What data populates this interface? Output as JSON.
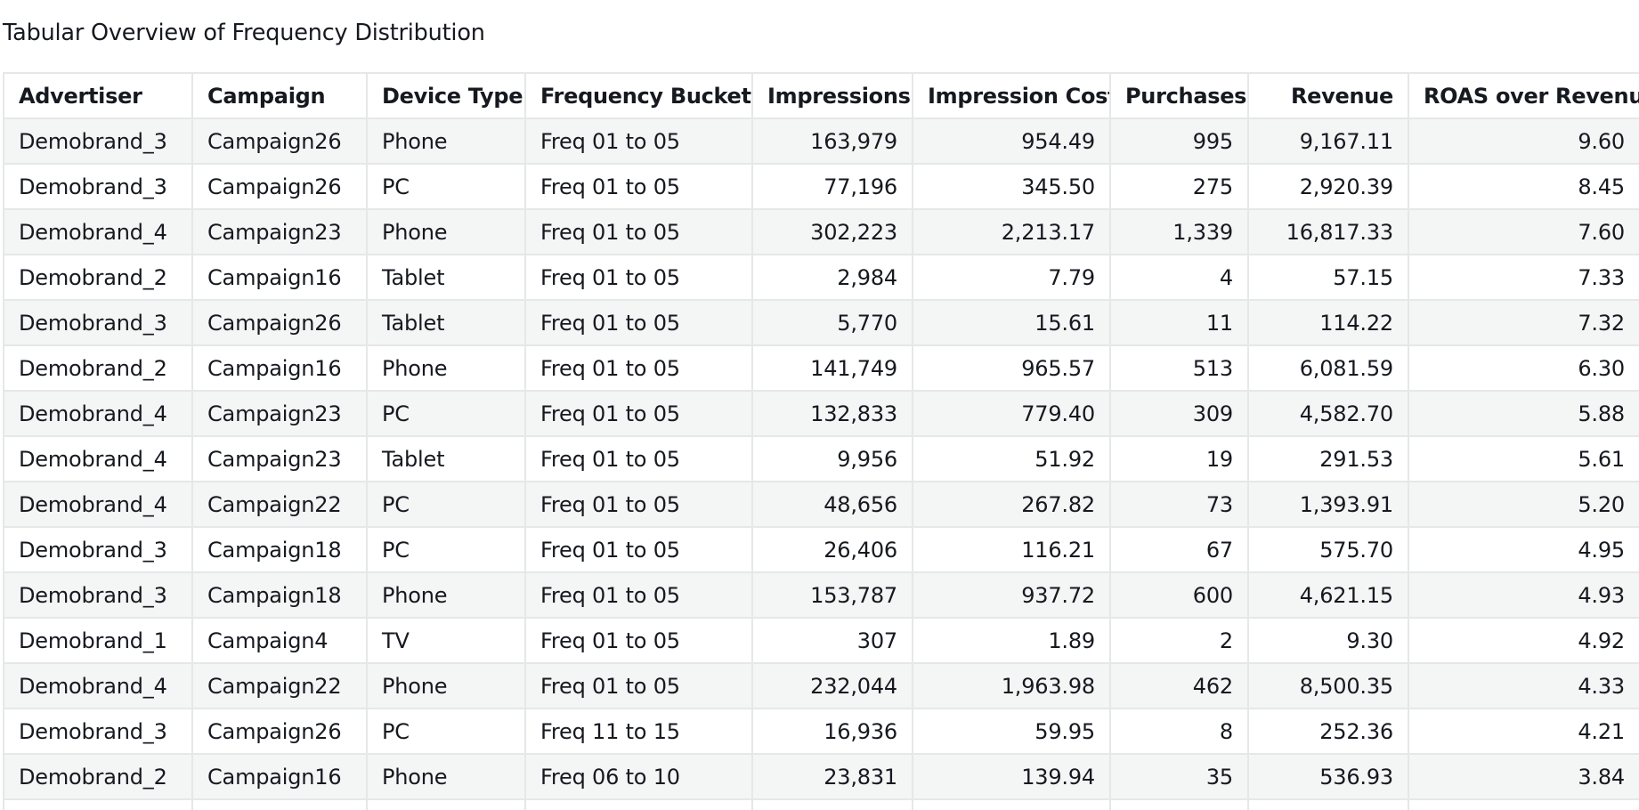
{
  "chart_data": {
    "type": "table",
    "title": "Tabular Overview of Frequency Distribution",
    "columns": [
      {
        "label": "Advertiser",
        "align": "left"
      },
      {
        "label": "Campaign",
        "align": "left"
      },
      {
        "label": "Device Type",
        "align": "left"
      },
      {
        "label": "Frequency Buckets",
        "align": "left"
      },
      {
        "label": "Impressions",
        "align": "right"
      },
      {
        "label": "Impression Cost",
        "align": "right"
      },
      {
        "label": "Purchases",
        "align": "right"
      },
      {
        "label": "Revenue",
        "align": "right"
      },
      {
        "label": "ROAS over Revenue",
        "align": "right"
      }
    ],
    "rows": [
      [
        "Demobrand_3",
        "Campaign26",
        "Phone",
        "Freq 01 to 05",
        "163,979",
        "954.49",
        "995",
        "9,167.11",
        "9.60"
      ],
      [
        "Demobrand_3",
        "Campaign26",
        "PC",
        "Freq 01 to 05",
        "77,196",
        "345.50",
        "275",
        "2,920.39",
        "8.45"
      ],
      [
        "Demobrand_4",
        "Campaign23",
        "Phone",
        "Freq 01 to 05",
        "302,223",
        "2,213.17",
        "1,339",
        "16,817.33",
        "7.60"
      ],
      [
        "Demobrand_2",
        "Campaign16",
        "Tablet",
        "Freq 01 to 05",
        "2,984",
        "7.79",
        "4",
        "57.15",
        "7.33"
      ],
      [
        "Demobrand_3",
        "Campaign26",
        "Tablet",
        "Freq 01 to 05",
        "5,770",
        "15.61",
        "11",
        "114.22",
        "7.32"
      ],
      [
        "Demobrand_2",
        "Campaign16",
        "Phone",
        "Freq 01 to 05",
        "141,749",
        "965.57",
        "513",
        "6,081.59",
        "6.30"
      ],
      [
        "Demobrand_4",
        "Campaign23",
        "PC",
        "Freq 01 to 05",
        "132,833",
        "779.40",
        "309",
        "4,582.70",
        "5.88"
      ],
      [
        "Demobrand_4",
        "Campaign23",
        "Tablet",
        "Freq 01 to 05",
        "9,956",
        "51.92",
        "19",
        "291.53",
        "5.61"
      ],
      [
        "Demobrand_4",
        "Campaign22",
        "PC",
        "Freq 01 to 05",
        "48,656",
        "267.82",
        "73",
        "1,393.91",
        "5.20"
      ],
      [
        "Demobrand_3",
        "Campaign18",
        "PC",
        "Freq 01 to 05",
        "26,406",
        "116.21",
        "67",
        "575.70",
        "4.95"
      ],
      [
        "Demobrand_3",
        "Campaign18",
        "Phone",
        "Freq 01 to 05",
        "153,787",
        "937.72",
        "600",
        "4,621.15",
        "4.93"
      ],
      [
        "Demobrand_1",
        "Campaign4",
        "TV",
        "Freq 01 to 05",
        "307",
        "1.89",
        "2",
        "9.30",
        "4.92"
      ],
      [
        "Demobrand_4",
        "Campaign22",
        "Phone",
        "Freq 01 to 05",
        "232,044",
        "1,963.98",
        "462",
        "8,500.35",
        "4.33"
      ],
      [
        "Demobrand_3",
        "Campaign26",
        "PC",
        "Freq 11 to 15",
        "16,936",
        "59.95",
        "8",
        "252.36",
        "4.21"
      ],
      [
        "Demobrand_2",
        "Campaign16",
        "Phone",
        "Freq 06 to 10",
        "23,831",
        "139.94",
        "35",
        "536.93",
        "3.84"
      ]
    ]
  }
}
